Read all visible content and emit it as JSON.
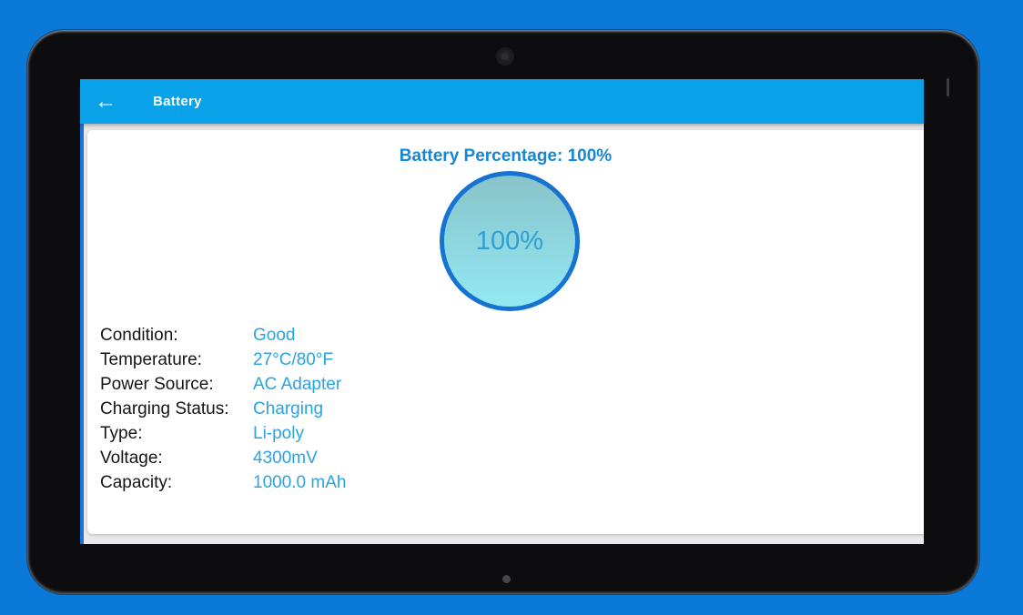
{
  "app_bar": {
    "title": "Battery",
    "back_glyph": "←"
  },
  "main": {
    "heading": "Battery Percentage: 100%",
    "gauge": {
      "percent": "100%"
    },
    "info": [
      {
        "label": "Condition:",
        "value": "Good"
      },
      {
        "label": "Temperature:",
        "value": "27°C/80°F"
      },
      {
        "label": "Power Source:",
        "value": "AC Adapter"
      },
      {
        "label": "Charging Status:",
        "value": "Charging"
      },
      {
        "label": "Type:",
        "value": "Li-poly"
      },
      {
        "label": "Voltage:",
        "value": "4300mV"
      },
      {
        "label": "Capacity:",
        "value": "1000.0 mAh"
      }
    ]
  },
  "colors": {
    "page_background": "#0b79d7",
    "app_bar": "#09a2e9",
    "heading_text": "#1487d6",
    "label_text": "#141414",
    "value_text": "#29a3e3",
    "gauge_border": "#1673d2",
    "gauge_fill_top": "#8ac3ca",
    "gauge_fill_bottom": "#92e9f3",
    "gauge_text": "#2f9fd8"
  }
}
